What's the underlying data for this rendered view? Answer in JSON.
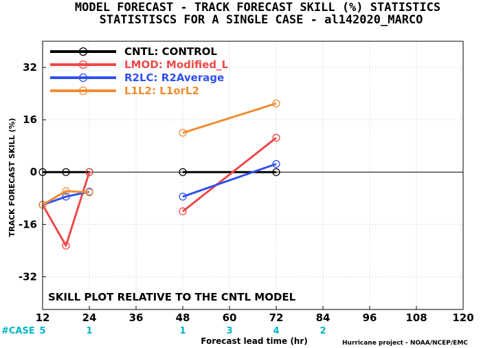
{
  "chart_data": {
    "type": "line",
    "title": "MODEL FORECAST - TRACK FORECAST SKILL (%) STATISTICS",
    "subtitle": "STATISTISCS FOR A SINGLE CASE - al142020_MARCO",
    "ylabel": "TRACK FORECAST SKILL (%)",
    "xlabel": "Forecast lead time (hr)",
    "xlim": [
      12,
      120
    ],
    "ylim": [
      -42,
      40
    ],
    "xticks": [
      12,
      24,
      36,
      48,
      60,
      72,
      84,
      96,
      108,
      120
    ],
    "yticks": [
      -32,
      -16,
      0,
      16,
      32
    ],
    "grid": true,
    "legend_position": "top-left",
    "annotation": "SKILL PLOT RELATIVE TO THE CNTL MODEL",
    "case_label": "#CASE",
    "case_counts": [
      {
        "x": 12,
        "n": "5"
      },
      {
        "x": 24,
        "n": "1"
      },
      {
        "x": 48,
        "n": "1"
      },
      {
        "x": 60,
        "n": "3"
      },
      {
        "x": 72,
        "n": "4"
      },
      {
        "x": 84,
        "n": "2"
      }
    ],
    "credit": "Hurricane project - NOAA/NCEP/EMC",
    "series": [
      {
        "name": "CNTL: CONTROL",
        "color": "#000000",
        "segments": [
          [
            [
              12,
              0
            ],
            [
              18,
              0
            ],
            [
              24,
              0
            ]
          ],
          [
            [
              48,
              0
            ],
            [
              72,
              0
            ]
          ]
        ]
      },
      {
        "name": "LMOD: Modified_L",
        "color": "#f04848",
        "segments": [
          [
            [
              12,
              -10
            ],
            [
              18,
              -22.5
            ],
            [
              24,
              0
            ]
          ],
          [
            [
              48,
              -12
            ],
            [
              72,
              10.5
            ]
          ]
        ]
      },
      {
        "name": "R2LC: R2Average",
        "color": "#3050f0",
        "segments": [
          [
            [
              12,
              -10
            ],
            [
              18,
              -7.5
            ],
            [
              24,
              -6
            ]
          ],
          [
            [
              48,
              -7.5
            ],
            [
              72,
              2.5
            ]
          ]
        ]
      },
      {
        "name": "L1L2: L1orL2",
        "color": "#f08c30",
        "segments": [
          [
            [
              12,
              -10
            ],
            [
              18,
              -5.8
            ],
            [
              24,
              -6.2
            ]
          ],
          [
            [
              48,
              12
            ],
            [
              72,
              21
            ]
          ]
        ]
      }
    ]
  }
}
